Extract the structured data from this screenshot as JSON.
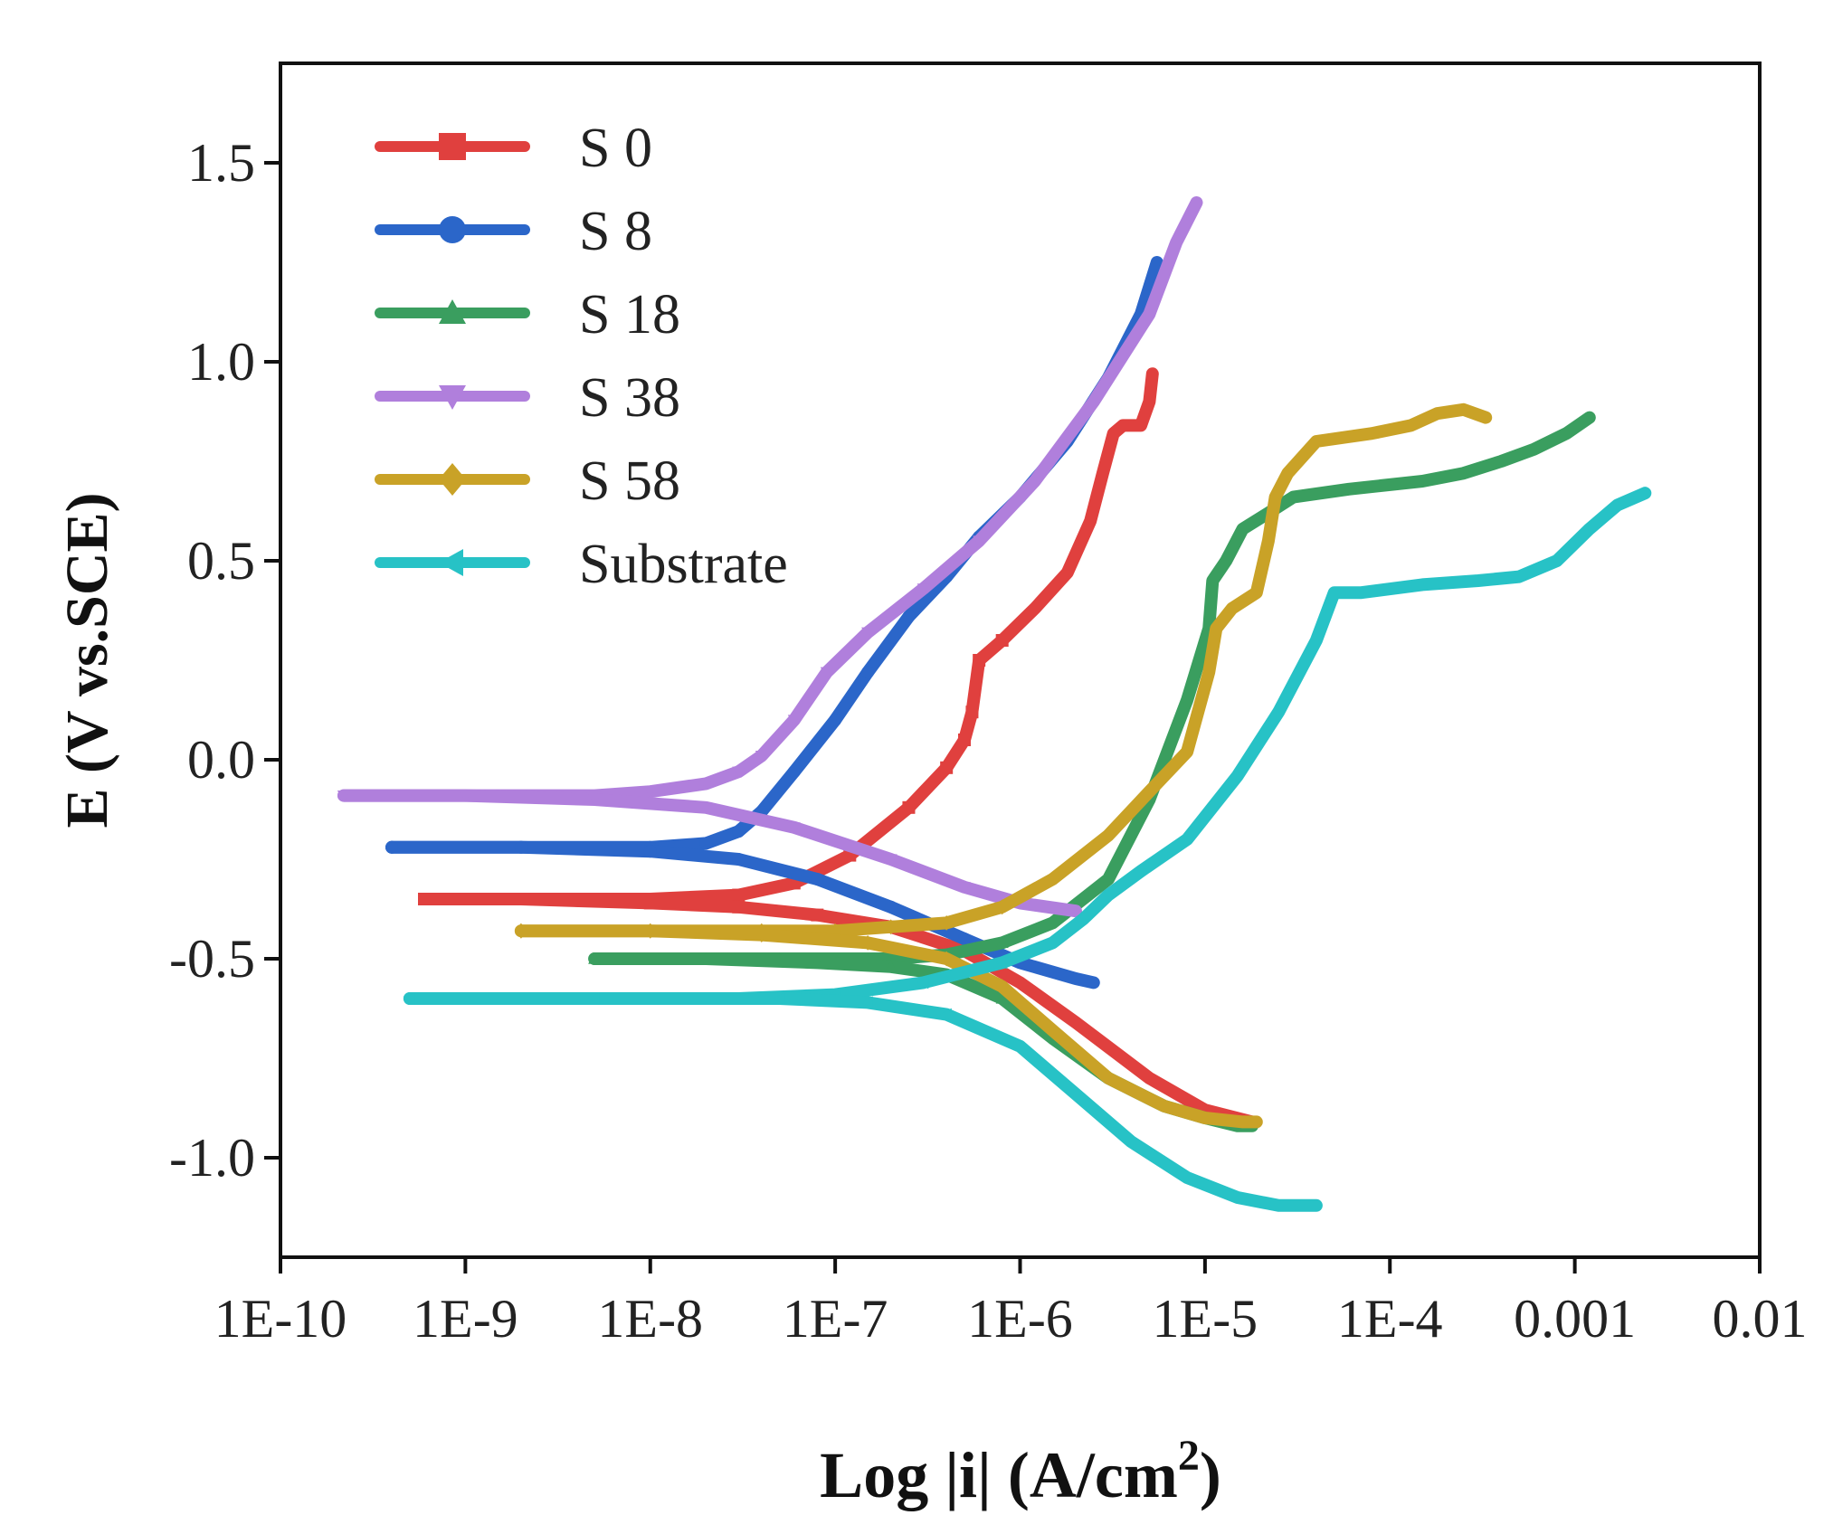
{
  "chart_data": {
    "type": "line",
    "title": "",
    "xlabel": "Log |i| (A/cm",
    "xlabel_sup": "2",
    "xlabel_end": ")",
    "ylabel": "E (V vs.SCE)",
    "xscale": "log",
    "xlim": [
      1e-10,
      0.01
    ],
    "ylim": [
      -1.25,
      1.75
    ],
    "grid": false,
    "legend_position": "top-left",
    "x_tick_values": [
      1e-10,
      1e-09,
      1e-08,
      1e-07,
      1e-06,
      1e-05,
      0.0001,
      0.001,
      0.01
    ],
    "x_tick_labels": [
      "1E-10",
      "1E-9",
      "1E-8",
      "1E-7",
      "1E-6",
      "1E-5",
      "1E-4",
      "0.001",
      "0.01"
    ],
    "y_tick_values": [
      -1.0,
      -0.5,
      0.0,
      0.5,
      1.0,
      1.5
    ],
    "y_tick_labels": [
      "-1.0",
      "-0.5",
      "0.0",
      "0.5",
      "1.0",
      "1.5"
    ],
    "series": [
      {
        "name": "S 0",
        "color": "#e0403e",
        "marker": "square",
        "anodic": {
          "i": [
            6e-10,
            2e-09,
            1e-08,
            3e-08,
            6e-08,
            1.2e-07,
            2.5e-07,
            4e-07,
            5e-07,
            5.5e-07,
            6e-07,
            8e-07,
            1.2e-06,
            1.8e-06,
            2.4e-06,
            2.8e-06,
            3.2e-06,
            3.6e-06,
            4.5e-06,
            5e-06,
            5.2e-06
          ],
          "E": [
            -0.35,
            -0.35,
            -0.35,
            -0.34,
            -0.31,
            -0.24,
            -0.12,
            -0.02,
            0.05,
            0.12,
            0.25,
            0.3,
            0.38,
            0.47,
            0.6,
            0.72,
            0.82,
            0.84,
            0.84,
            0.9,
            0.97
          ]
        },
        "cathodic": {
          "i": [
            6e-10,
            2e-09,
            1e-08,
            3e-08,
            8e-08,
            2e-07,
            5e-07,
            1e-06,
            2e-06,
            5e-06,
            1e-05,
            1.8e-05
          ],
          "E": [
            -0.35,
            -0.35,
            -0.36,
            -0.37,
            -0.39,
            -0.42,
            -0.48,
            -0.56,
            -0.66,
            -0.8,
            -0.88,
            -0.91
          ]
        }
      },
      {
        "name": "S 8",
        "color": "#2b66c9",
        "marker": "circle",
        "anodic": {
          "i": [
            4e-10,
            2e-09,
            1e-08,
            2e-08,
            3e-08,
            4e-08,
            6e-08,
            1e-07,
            1.5e-07,
            2.5e-07,
            4e-07,
            6e-07,
            1e-06,
            1.8e-06,
            3e-06,
            4.5e-06,
            5.5e-06
          ],
          "E": [
            -0.22,
            -0.22,
            -0.22,
            -0.21,
            -0.18,
            -0.13,
            -0.03,
            0.1,
            0.22,
            0.36,
            0.46,
            0.56,
            0.66,
            0.8,
            0.96,
            1.12,
            1.25
          ]
        },
        "cathodic": {
          "i": [
            4e-10,
            2e-09,
            1e-08,
            3e-08,
            8e-08,
            2e-07,
            5e-07,
            1e-06,
            2e-06,
            2.5e-06
          ],
          "E": [
            -0.22,
            -0.22,
            -0.23,
            -0.25,
            -0.3,
            -0.37,
            -0.45,
            -0.51,
            -0.55,
            -0.56
          ]
        }
      },
      {
        "name": "S 18",
        "color": "#3a9e5f",
        "marker": "triangle-up",
        "anodic": {
          "i": [
            5e-09,
            1.5e-08,
            5e-08,
            1e-07,
            2e-07,
            4e-07,
            8e-07,
            1.5e-06,
            3e-06,
            5e-06,
            8e-06,
            1.05e-05,
            1.1e-05,
            1.3e-05,
            1.6e-05,
            2.2e-05,
            3e-05,
            6e-05,
            0.00015,
            0.00025,
            0.0004,
            0.0006,
            0.0009,
            0.0012
          ],
          "E": [
            -0.5,
            -0.5,
            -0.5,
            -0.5,
            -0.5,
            -0.49,
            -0.46,
            -0.41,
            -0.3,
            -0.1,
            0.15,
            0.33,
            0.45,
            0.5,
            0.58,
            0.62,
            0.66,
            0.68,
            0.7,
            0.72,
            0.75,
            0.78,
            0.82,
            0.86
          ]
        },
        "cathodic": {
          "i": [
            5e-09,
            2e-08,
            8e-08,
            2e-07,
            4e-07,
            8e-07,
            1.5e-06,
            3e-06,
            6e-06,
            1e-05,
            1.5e-05,
            1.8e-05
          ],
          "E": [
            -0.5,
            -0.5,
            -0.51,
            -0.52,
            -0.54,
            -0.6,
            -0.7,
            -0.8,
            -0.87,
            -0.9,
            -0.92,
            -0.92
          ]
        }
      },
      {
        "name": "S 38",
        "color": "#b07fdc",
        "marker": "triangle-down",
        "anodic": {
          "i": [
            2.2e-10,
            1e-09,
            5e-09,
            1e-08,
            2e-08,
            3e-08,
            4e-08,
            6e-08,
            9e-08,
            1.5e-07,
            3e-07,
            6e-07,
            1.2e-06,
            2.5e-06,
            5e-06,
            7e-06,
            9e-06
          ],
          "E": [
            -0.09,
            -0.09,
            -0.09,
            -0.08,
            -0.06,
            -0.03,
            0.01,
            0.1,
            0.22,
            0.32,
            0.43,
            0.55,
            0.7,
            0.9,
            1.12,
            1.3,
            1.4
          ]
        },
        "cathodic": {
          "i": [
            2.2e-10,
            1e-09,
            5e-09,
            2e-08,
            6e-08,
            2e-07,
            5e-07,
            1e-06,
            2e-06
          ],
          "E": [
            -0.09,
            -0.09,
            -0.1,
            -0.12,
            -0.17,
            -0.25,
            -0.32,
            -0.36,
            -0.38
          ]
        }
      },
      {
        "name": "S 58",
        "color": "#c9a227",
        "marker": "diamond",
        "anodic": {
          "i": [
            2e-09,
            1e-08,
            4e-08,
            1e-07,
            2e-07,
            4e-07,
            8e-07,
            1.5e-06,
            3e-06,
            5e-06,
            8e-06,
            1.05e-05,
            1.15e-05,
            1.4e-05,
            1.9e-05,
            2.2e-05,
            2.4e-05,
            2.8e-05,
            4e-05,
            8e-05,
            0.00013,
            0.00018,
            0.00025,
            0.00033
          ],
          "E": [
            -0.43,
            -0.43,
            -0.43,
            -0.43,
            -0.42,
            -0.41,
            -0.37,
            -0.3,
            -0.19,
            -0.08,
            0.02,
            0.22,
            0.33,
            0.38,
            0.42,
            0.55,
            0.66,
            0.72,
            0.8,
            0.82,
            0.84,
            0.87,
            0.88,
            0.86
          ]
        },
        "cathodic": {
          "i": [
            2e-09,
            1e-08,
            4e-08,
            1.5e-07,
            4e-07,
            8e-07,
            1.5e-06,
            3e-06,
            6e-06,
            1e-05,
            1.6e-05,
            1.9e-05
          ],
          "E": [
            -0.43,
            -0.43,
            -0.44,
            -0.46,
            -0.5,
            -0.57,
            -0.68,
            -0.8,
            -0.87,
            -0.9,
            -0.91,
            -0.91
          ]
        }
      },
      {
        "name": "Substrate",
        "color": "#27c2c6",
        "marker": "triangle-left",
        "anodic": {
          "i": [
            5e-10,
            5e-09,
            3e-08,
            1e-07,
            3e-07,
            8e-07,
            1.5e-06,
            2.2e-06,
            3e-06,
            4.5e-06,
            8e-06,
            1.5e-05,
            2.5e-05,
            4e-05,
            5e-05,
            7e-05,
            0.00015,
            0.0003,
            0.0005,
            0.0008,
            0.0012,
            0.0017,
            0.0024
          ],
          "E": [
            -0.6,
            -0.6,
            -0.6,
            -0.59,
            -0.56,
            -0.51,
            -0.46,
            -0.4,
            -0.34,
            -0.28,
            -0.2,
            -0.04,
            0.12,
            0.3,
            0.42,
            0.42,
            0.44,
            0.45,
            0.46,
            0.5,
            0.58,
            0.64,
            0.67
          ]
        },
        "cathodic": {
          "i": [
            5e-10,
            5e-09,
            5e-08,
            1.5e-07,
            4e-07,
            1e-06,
            2e-06,
            4e-06,
            8e-06,
            1.5e-05,
            2.5e-05,
            4e-05
          ],
          "E": [
            -0.6,
            -0.6,
            -0.6,
            -0.61,
            -0.64,
            -0.72,
            -0.84,
            -0.96,
            -1.05,
            -1.1,
            -1.12,
            -1.12
          ]
        }
      }
    ]
  }
}
